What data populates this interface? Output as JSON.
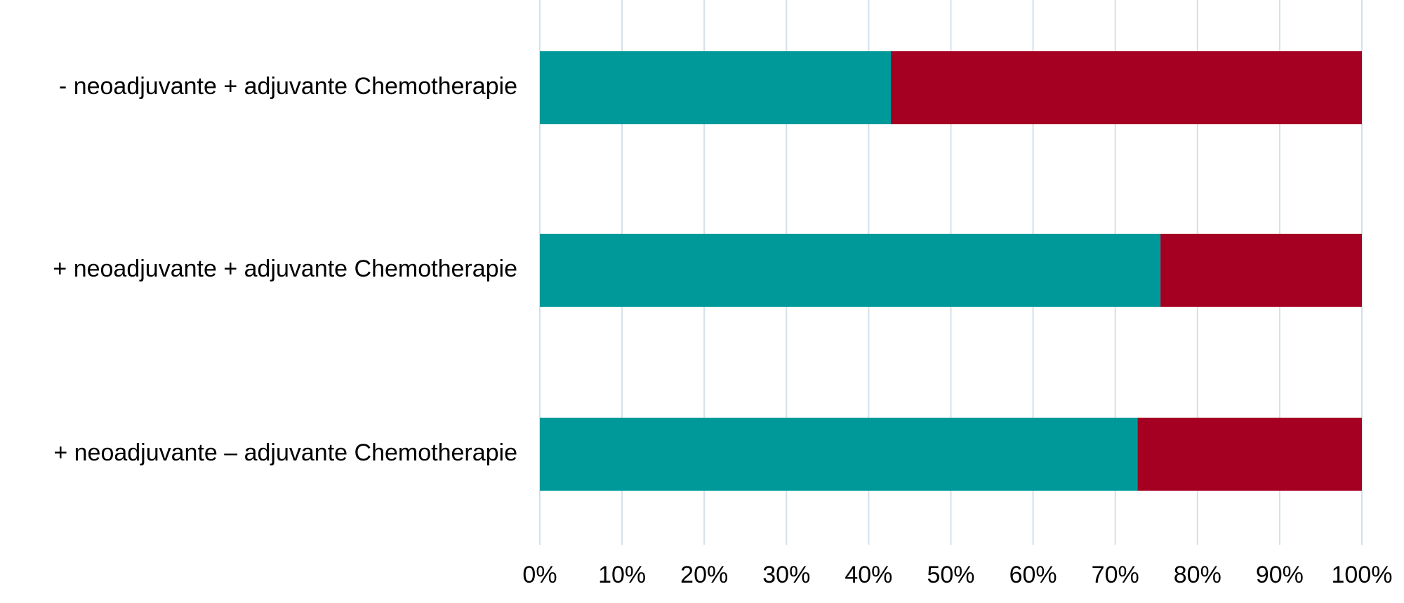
{
  "chart_data": {
    "type": "bar",
    "orientation": "horizontal",
    "stacked": true,
    "categories": [
      "- neoadjuvante + adjuvante Chemotherapie",
      "+ neoadjuvante + adjuvante Chemotherapie",
      "+ neoadjuvante – adjuvante Chemotherapie"
    ],
    "series": [
      {
        "color": "#009999",
        "values": [
          42.7,
          75.5,
          72.7
        ]
      },
      {
        "color": "#a50021",
        "values": [
          57.3,
          24.5,
          27.3
        ]
      }
    ],
    "xlim": [
      0,
      100
    ],
    "xticks": [
      {
        "value": 0,
        "label": "0%"
      },
      {
        "value": 10,
        "label": "10%"
      },
      {
        "value": 20,
        "label": "20%"
      },
      {
        "value": 30,
        "label": "30%"
      },
      {
        "value": 40,
        "label": "40%"
      },
      {
        "value": 50,
        "label": "50%"
      },
      {
        "value": 60,
        "label": "60%"
      },
      {
        "value": 70,
        "label": "70%"
      },
      {
        "value": 80,
        "label": "80%"
      },
      {
        "value": 90,
        "label": "90%"
      },
      {
        "value": 100,
        "label": "100%"
      }
    ],
    "grid": true,
    "grid_color": "#d3e0ea"
  }
}
